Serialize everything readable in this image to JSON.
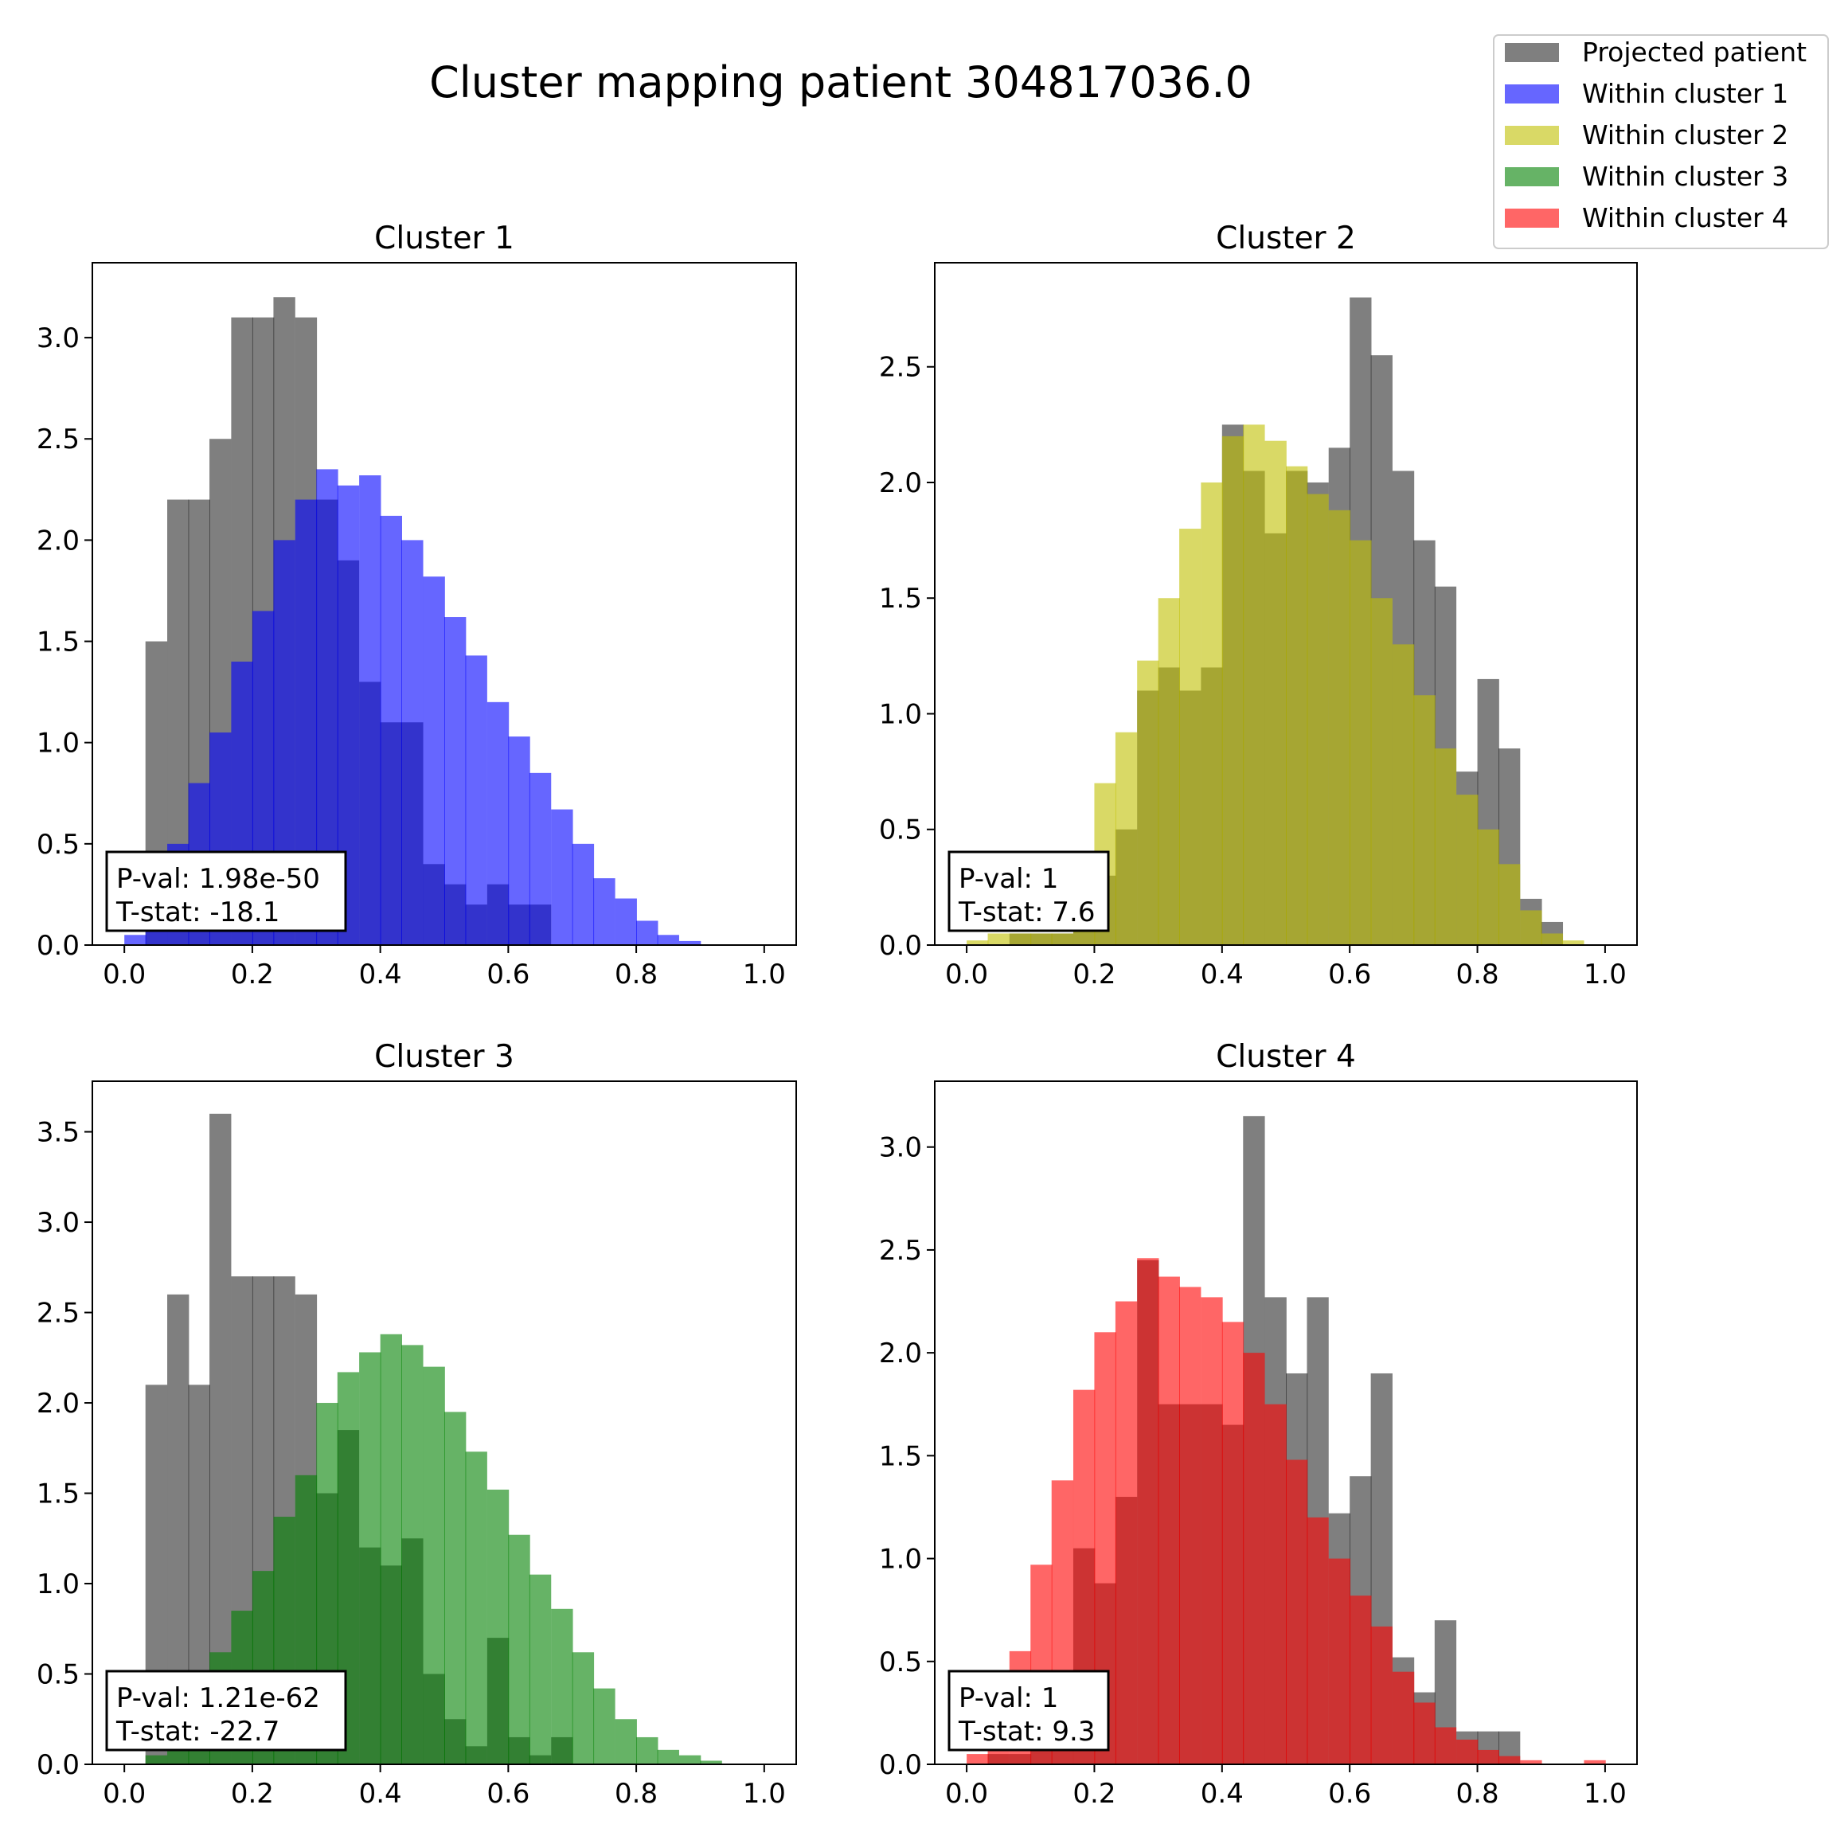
{
  "figure": {
    "title": "Cluster mapping patient 304817036.0"
  },
  "legend": {
    "placement": "top-right",
    "items": [
      {
        "label": "Projected patient",
        "color": "#000000",
        "alpha": 0.5
      },
      {
        "label": "Within cluster 1",
        "color": "#0000ff",
        "alpha": 0.6
      },
      {
        "label": "Within cluster 2",
        "color": "#bfbf00",
        "alpha": 0.6
      },
      {
        "label": "Within cluster 3",
        "color": "#008000",
        "alpha": 0.6
      },
      {
        "label": "Within cluster 4",
        "color": "#ff0000",
        "alpha": 0.6
      }
    ]
  },
  "chart_data": [
    {
      "type": "bar",
      "title": "Cluster 1",
      "xlim": [
        -0.05,
        1.05
      ],
      "ylim": [
        0,
        3.37
      ],
      "xticks": [
        "0.0",
        "0.2",
        "0.4",
        "0.6",
        "0.8",
        "1.0"
      ],
      "yticks": [
        "0.0",
        "0.5",
        "1.0",
        "1.5",
        "2.0",
        "2.5",
        "3.0"
      ],
      "grid": false,
      "stats": {
        "pval": "P-val:  1.98e-50",
        "tstat": "T-stat: -18.1"
      },
      "projected": {
        "name": "Projected patient",
        "color": "#000000",
        "bin_width": 0.0333,
        "x": [
          0.033,
          0.067,
          0.1,
          0.133,
          0.167,
          0.2,
          0.233,
          0.267,
          0.3,
          0.333,
          0.367,
          0.4,
          0.433,
          0.467,
          0.5,
          0.533,
          0.567,
          0.6,
          0.633
        ],
        "values": [
          1.5,
          2.2,
          2.2,
          2.5,
          3.1,
          3.1,
          3.2,
          3.1,
          2.2,
          1.9,
          1.3,
          1.1,
          1.1,
          0.4,
          0.3,
          0.2,
          0.3,
          0.2,
          0.2
        ]
      },
      "cluster": {
        "name": "Within cluster 1",
        "color": "#0000ff",
        "bin_width": 0.0333,
        "x": [
          0.0,
          0.033,
          0.067,
          0.1,
          0.133,
          0.167,
          0.2,
          0.233,
          0.267,
          0.3,
          0.333,
          0.367,
          0.4,
          0.433,
          0.467,
          0.5,
          0.533,
          0.567,
          0.6,
          0.633,
          0.667,
          0.7,
          0.733,
          0.767,
          0.8,
          0.833,
          0.867
        ],
        "values": [
          0.05,
          0.2,
          0.5,
          0.8,
          1.05,
          1.4,
          1.65,
          2.0,
          2.2,
          2.35,
          2.27,
          2.32,
          2.12,
          2.0,
          1.82,
          1.62,
          1.43,
          1.2,
          1.03,
          0.85,
          0.67,
          0.5,
          0.33,
          0.23,
          0.12,
          0.05,
          0.02
        ]
      }
    },
    {
      "type": "bar",
      "title": "Cluster 2",
      "xlim": [
        -0.05,
        1.05
      ],
      "ylim": [
        0,
        2.95
      ],
      "xticks": [
        "0.0",
        "0.2",
        "0.4",
        "0.6",
        "0.8",
        "1.0"
      ],
      "yticks": [
        "0.0",
        "0.5",
        "1.0",
        "1.5",
        "2.0",
        "2.5"
      ],
      "grid": false,
      "stats": {
        "pval": "P-val:  1",
        "tstat": "T-stat: 7.6"
      },
      "projected": {
        "name": "Projected patient",
        "color": "#000000",
        "bin_width": 0.0333,
        "x": [
          0.067,
          0.1,
          0.133,
          0.167,
          0.2,
          0.233,
          0.267,
          0.3,
          0.333,
          0.367,
          0.4,
          0.433,
          0.467,
          0.5,
          0.533,
          0.567,
          0.6,
          0.633,
          0.667,
          0.7,
          0.733,
          0.767,
          0.8,
          0.833,
          0.867,
          0.9
        ],
        "values": [
          0.05,
          0.05,
          0.05,
          0.2,
          0.3,
          0.5,
          1.1,
          1.2,
          1.1,
          1.2,
          2.25,
          2.05,
          1.78,
          2.05,
          2.0,
          2.15,
          2.8,
          2.55,
          2.05,
          1.75,
          1.55,
          0.75,
          1.15,
          0.85,
          0.2,
          0.1
        ]
      },
      "cluster": {
        "name": "Within cluster 2",
        "color": "#bfbf00",
        "bin_width": 0.0333,
        "x": [
          0.0,
          0.033,
          0.067,
          0.1,
          0.133,
          0.167,
          0.2,
          0.233,
          0.267,
          0.3,
          0.333,
          0.367,
          0.4,
          0.433,
          0.467,
          0.5,
          0.533,
          0.567,
          0.6,
          0.633,
          0.667,
          0.7,
          0.733,
          0.767,
          0.8,
          0.833,
          0.867,
          0.9,
          0.933
        ],
        "values": [
          0.02,
          0.05,
          0.05,
          0.05,
          0.05,
          0.2,
          0.7,
          0.92,
          1.23,
          1.5,
          1.8,
          2.0,
          2.2,
          2.25,
          2.18,
          2.07,
          1.95,
          1.88,
          1.75,
          1.5,
          1.3,
          1.08,
          0.85,
          0.65,
          0.5,
          0.35,
          0.15,
          0.05,
          0.02
        ]
      }
    },
    {
      "type": "bar",
      "title": "Cluster 3",
      "xlim": [
        -0.05,
        1.05
      ],
      "ylim": [
        0,
        3.78
      ],
      "xticks": [
        "0.0",
        "0.2",
        "0.4",
        "0.6",
        "0.8",
        "1.0"
      ],
      "yticks": [
        "0.0",
        "0.5",
        "1.0",
        "1.5",
        "2.0",
        "2.5",
        "3.0",
        "3.5"
      ],
      "grid": false,
      "stats": {
        "pval": "P-val:  1.21e-62",
        "tstat": "T-stat: -22.7"
      },
      "projected": {
        "name": "Projected patient",
        "color": "#000000",
        "bin_width": 0.0333,
        "x": [
          0.033,
          0.067,
          0.1,
          0.133,
          0.167,
          0.2,
          0.233,
          0.267,
          0.3,
          0.333,
          0.367,
          0.4,
          0.433,
          0.467,
          0.5,
          0.533,
          0.567,
          0.6,
          0.633,
          0.667
        ],
        "values": [
          2.1,
          2.6,
          2.1,
          3.6,
          2.7,
          2.7,
          2.7,
          2.6,
          1.5,
          1.85,
          1.2,
          1.1,
          1.25,
          0.5,
          0.25,
          0.1,
          0.7,
          0.15,
          0.05,
          0.15
        ]
      },
      "cluster": {
        "name": "Within cluster 3",
        "color": "#008000",
        "bin_width": 0.0333,
        "x": [
          0.033,
          0.067,
          0.1,
          0.133,
          0.167,
          0.2,
          0.233,
          0.267,
          0.3,
          0.333,
          0.367,
          0.4,
          0.433,
          0.467,
          0.5,
          0.533,
          0.567,
          0.6,
          0.633,
          0.667,
          0.7,
          0.733,
          0.767,
          0.8,
          0.833,
          0.867,
          0.9
        ],
        "values": [
          0.05,
          0.1,
          0.3,
          0.62,
          0.85,
          1.07,
          1.37,
          1.6,
          2.0,
          2.17,
          2.28,
          2.38,
          2.32,
          2.2,
          1.95,
          1.73,
          1.52,
          1.27,
          1.05,
          0.86,
          0.62,
          0.42,
          0.25,
          0.15,
          0.08,
          0.05,
          0.02
        ]
      }
    },
    {
      "type": "bar",
      "title": "Cluster 4",
      "xlim": [
        -0.05,
        1.05
      ],
      "ylim": [
        0,
        3.32
      ],
      "xticks": [
        "0.0",
        "0.2",
        "0.4",
        "0.6",
        "0.8",
        "1.0"
      ],
      "yticks": [
        "0.0",
        "0.5",
        "1.0",
        "1.5",
        "2.0",
        "2.5",
        "3.0"
      ],
      "grid": false,
      "stats": {
        "pval": "P-val:  1",
        "tstat": "T-stat: 9.3"
      },
      "projected": {
        "name": "Projected patient",
        "color": "#000000",
        "bin_width": 0.0333,
        "x": [
          0.033,
          0.067,
          0.1,
          0.133,
          0.167,
          0.2,
          0.233,
          0.267,
          0.3,
          0.333,
          0.367,
          0.4,
          0.433,
          0.467,
          0.5,
          0.533,
          0.567,
          0.6,
          0.633,
          0.667,
          0.7,
          0.733,
          0.767,
          0.8,
          0.833
        ],
        "values": [
          0.05,
          0.05,
          0.1,
          0.15,
          1.05,
          0.88,
          1.3,
          2.45,
          1.75,
          1.75,
          1.75,
          1.65,
          3.15,
          2.27,
          1.9,
          2.27,
          1.22,
          1.4,
          1.9,
          0.52,
          0.35,
          0.7,
          0.16,
          0.16,
          0.16
        ]
      },
      "cluster": {
        "name": "Within cluster 4",
        "color": "#ff0000",
        "bin_width": 0.0333,
        "x": [
          0.0,
          0.033,
          0.067,
          0.1,
          0.133,
          0.167,
          0.2,
          0.233,
          0.267,
          0.3,
          0.333,
          0.367,
          0.4,
          0.433,
          0.467,
          0.5,
          0.533,
          0.567,
          0.6,
          0.633,
          0.667,
          0.7,
          0.733,
          0.767,
          0.8,
          0.833,
          0.867,
          0.967
        ],
        "values": [
          0.05,
          0.2,
          0.55,
          0.97,
          1.38,
          1.82,
          2.1,
          2.25,
          2.46,
          2.37,
          2.32,
          2.27,
          2.15,
          2.0,
          1.75,
          1.48,
          1.2,
          1.0,
          0.82,
          0.67,
          0.45,
          0.3,
          0.18,
          0.12,
          0.07,
          0.04,
          0.02,
          0.02
        ]
      }
    }
  ]
}
